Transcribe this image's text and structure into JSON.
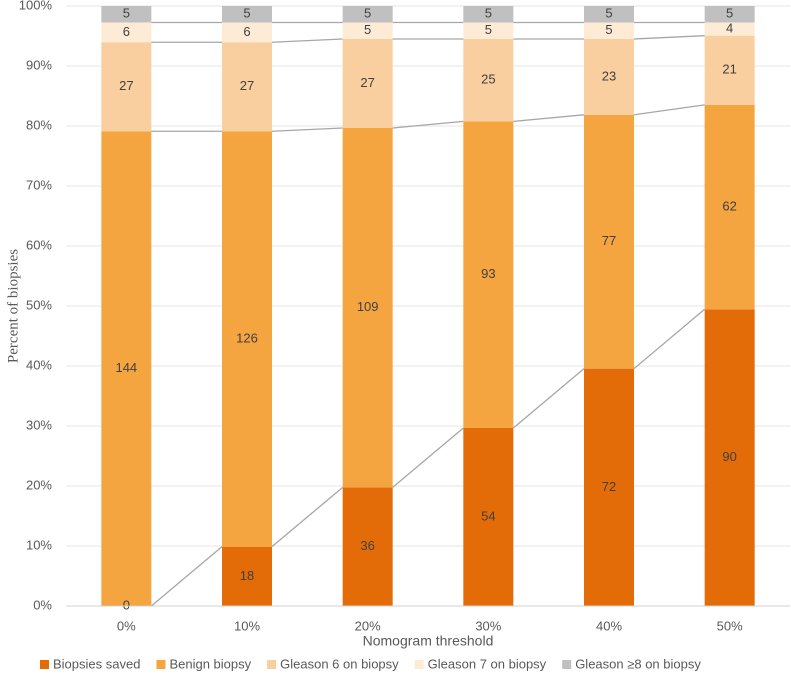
{
  "chart_data": {
    "type": "bar",
    "stacking": "percent",
    "x_label": "Nomogram threshold",
    "y_label": "Percent of biopsies",
    "categories": [
      "0%",
      "10%",
      "20%",
      "30%",
      "40%",
      "50%"
    ],
    "series": [
      {
        "name": "Biopsies saved",
        "color": "#e36c09",
        "values": [
          0,
          18,
          36,
          54,
          72,
          90
        ]
      },
      {
        "name": "Benign biopsy",
        "color": "#f4a540",
        "values": [
          144,
          126,
          109,
          93,
          77,
          62
        ]
      },
      {
        "name": "Gleason 6 on biopsy",
        "color": "#f9cf9f",
        "values": [
          27,
          27,
          27,
          25,
          23,
          21
        ]
      },
      {
        "name": "Gleason 7 on biopsy",
        "color": "#fdebd6",
        "values": [
          6,
          6,
          5,
          5,
          5,
          4
        ]
      },
      {
        "name": "Gleason ≥8 on biopsy",
        "color": "#c0c0c0",
        "values": [
          5,
          5,
          5,
          5,
          5,
          5
        ]
      }
    ],
    "ylim": [
      0,
      100
    ],
    "yticks": [
      {
        "value": 0,
        "label": "0%"
      },
      {
        "value": 10,
        "label": "10%"
      },
      {
        "value": 20,
        "label": "20%"
      },
      {
        "value": 30,
        "label": "30%"
      },
      {
        "value": 40,
        "label": "40%"
      },
      {
        "value": 50,
        "label": "50%"
      },
      {
        "value": 60,
        "label": "60%"
      },
      {
        "value": 70,
        "label": "70%"
      },
      {
        "value": 80,
        "label": "80%"
      },
      {
        "value": 90,
        "label": "90%"
      },
      {
        "value": 100,
        "label": "100%"
      }
    ],
    "grid": true,
    "legend": "bottom"
  }
}
